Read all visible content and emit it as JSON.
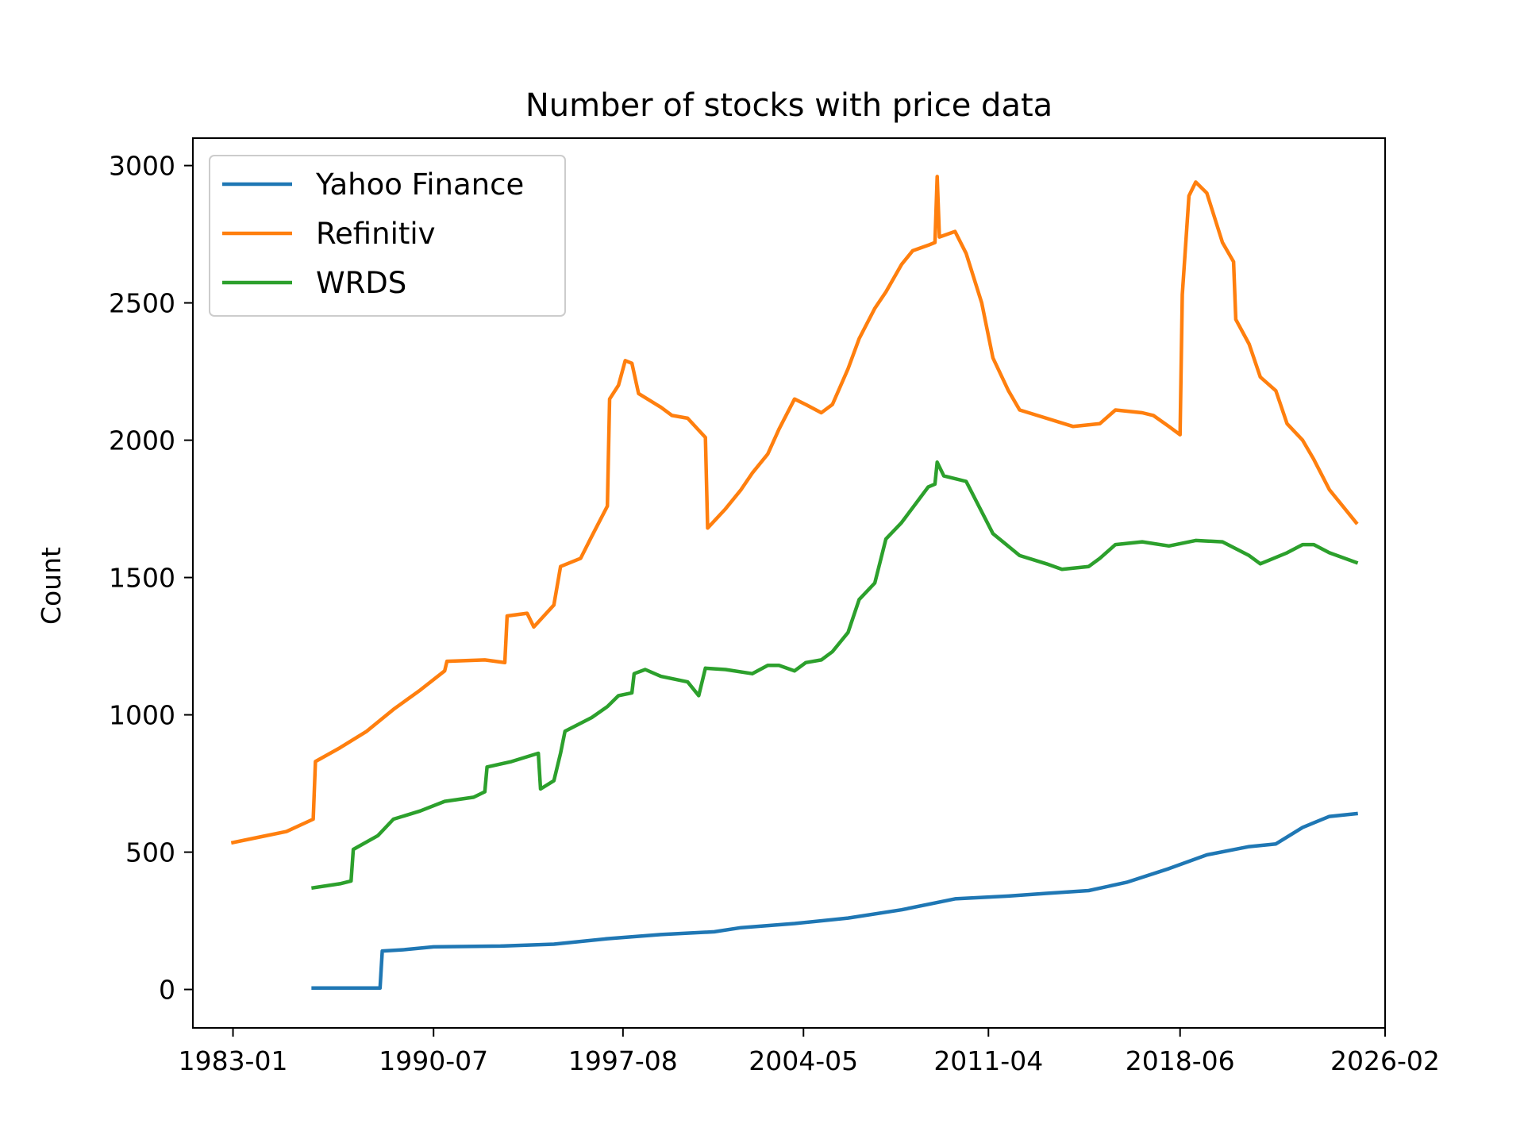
{
  "chart_data": {
    "type": "line",
    "title": "Number of stocks with price data",
    "xlabel": "",
    "ylabel": "Count",
    "x_ticks": [
      "1983-01",
      "1990-07",
      "1997-08",
      "2004-05",
      "2011-04",
      "2018-06",
      "2026-02"
    ],
    "y_ticks": [
      "0",
      "500",
      "1000",
      "1500",
      "2000",
      "2500",
      "3000"
    ],
    "xlim": [
      "1981-07",
      "2026-02"
    ],
    "ylim": [
      -140,
      3100
    ],
    "grid": false,
    "legend_position": "top-left",
    "series": [
      {
        "name": "Yahoo Finance",
        "color": "#1f77b4",
        "points": [
          [
            "1986-01",
            5
          ],
          [
            "1988-07",
            5
          ],
          [
            "1988-08",
            140
          ],
          [
            "1989-06",
            145
          ],
          [
            "1990-07",
            155
          ],
          [
            "1993-01",
            158
          ],
          [
            "1995-01",
            165
          ],
          [
            "1997-01",
            185
          ],
          [
            "1999-01",
            200
          ],
          [
            "2001-01",
            210
          ],
          [
            "2002-01",
            225
          ],
          [
            "2004-01",
            240
          ],
          [
            "2006-01",
            260
          ],
          [
            "2008-01",
            290
          ],
          [
            "2010-01",
            330
          ],
          [
            "2012-01",
            340
          ],
          [
            "2013-06",
            350
          ],
          [
            "2015-01",
            360
          ],
          [
            "2016-06",
            390
          ],
          [
            "2018-01",
            440
          ],
          [
            "2019-06",
            490
          ],
          [
            "2021-01",
            520
          ],
          [
            "2022-01",
            530
          ],
          [
            "2023-01",
            590
          ],
          [
            "2024-01",
            630
          ],
          [
            "2025-01",
            640
          ]
        ]
      },
      {
        "name": "Refinitiv",
        "color": "#ff7f0e",
        "points": [
          [
            "1983-01",
            535
          ],
          [
            "1984-01",
            555
          ],
          [
            "1985-01",
            575
          ],
          [
            "1986-01",
            620
          ],
          [
            "1986-02",
            830
          ],
          [
            "1987-01",
            880
          ],
          [
            "1988-01",
            940
          ],
          [
            "1989-01",
            1020
          ],
          [
            "1990-01",
            1090
          ],
          [
            "1990-12",
            1160
          ],
          [
            "1991-01",
            1195
          ],
          [
            "1992-06",
            1200
          ],
          [
            "1993-03",
            1190
          ],
          [
            "1993-04",
            1360
          ],
          [
            "1994-01",
            1370
          ],
          [
            "1994-04",
            1320
          ],
          [
            "1995-01",
            1400
          ],
          [
            "1995-04",
            1540
          ],
          [
            "1996-01",
            1570
          ],
          [
            "1996-06",
            1650
          ],
          [
            "1997-01",
            1760
          ],
          [
            "1997-02",
            2150
          ],
          [
            "1997-06",
            2200
          ],
          [
            "1997-09",
            2290
          ],
          [
            "1997-12",
            2280
          ],
          [
            "1998-03",
            2170
          ],
          [
            "1999-01",
            2120
          ],
          [
            "1999-06",
            2090
          ],
          [
            "2000-01",
            2080
          ],
          [
            "2000-09",
            2010
          ],
          [
            "2000-10",
            1680
          ],
          [
            "2001-06",
            1750
          ],
          [
            "2002-01",
            1820
          ],
          [
            "2002-06",
            1880
          ],
          [
            "2003-01",
            1950
          ],
          [
            "2003-06",
            2040
          ],
          [
            "2004-01",
            2150
          ],
          [
            "2004-06",
            2130
          ],
          [
            "2005-01",
            2100
          ],
          [
            "2005-06",
            2130
          ],
          [
            "2006-01",
            2260
          ],
          [
            "2006-06",
            2370
          ],
          [
            "2007-01",
            2480
          ],
          [
            "2007-06",
            2540
          ],
          [
            "2008-01",
            2640
          ],
          [
            "2008-06",
            2690
          ],
          [
            "2009-01",
            2710
          ],
          [
            "2009-04",
            2720
          ],
          [
            "2009-05",
            2960
          ],
          [
            "2009-06",
            2740
          ],
          [
            "2010-01",
            2760
          ],
          [
            "2010-06",
            2680
          ],
          [
            "2011-01",
            2500
          ],
          [
            "2011-06",
            2300
          ],
          [
            "2012-01",
            2180
          ],
          [
            "2012-06",
            2110
          ],
          [
            "2013-06",
            2080
          ],
          [
            "2014-06",
            2050
          ],
          [
            "2015-06",
            2060
          ],
          [
            "2016-01",
            2110
          ],
          [
            "2017-01",
            2100
          ],
          [
            "2017-06",
            2090
          ],
          [
            "2018-01",
            2050
          ],
          [
            "2018-06",
            2020
          ],
          [
            "2018-07",
            2530
          ],
          [
            "2018-10",
            2890
          ],
          [
            "2019-01",
            2940
          ],
          [
            "2019-06",
            2900
          ],
          [
            "2020-01",
            2720
          ],
          [
            "2020-06",
            2650
          ],
          [
            "2020-07",
            2440
          ],
          [
            "2021-01",
            2350
          ],
          [
            "2021-06",
            2230
          ],
          [
            "2022-01",
            2180
          ],
          [
            "2022-06",
            2060
          ],
          [
            "2023-01",
            2000
          ],
          [
            "2023-06",
            1930
          ],
          [
            "2024-01",
            1820
          ],
          [
            "2025-01",
            1700
          ]
        ]
      },
      {
        "name": "WRDS",
        "color": "#2ca02c",
        "points": [
          [
            "1986-01",
            370
          ],
          [
            "1987-01",
            385
          ],
          [
            "1987-06",
            395
          ],
          [
            "1987-07",
            510
          ],
          [
            "1988-06",
            560
          ],
          [
            "1989-01",
            620
          ],
          [
            "1990-01",
            650
          ],
          [
            "1990-12",
            685
          ],
          [
            "1992-01",
            700
          ],
          [
            "1992-06",
            720
          ],
          [
            "1992-07",
            810
          ],
          [
            "1993-06",
            830
          ],
          [
            "1994-06",
            860
          ],
          [
            "1994-07",
            730
          ],
          [
            "1995-01",
            760
          ],
          [
            "1995-04",
            860
          ],
          [
            "1995-06",
            940
          ],
          [
            "1996-06",
            990
          ],
          [
            "1997-01",
            1030
          ],
          [
            "1997-06",
            1070
          ],
          [
            "1997-12",
            1080
          ],
          [
            "1998-01",
            1150
          ],
          [
            "1998-06",
            1165
          ],
          [
            "1999-01",
            1140
          ],
          [
            "2000-01",
            1120
          ],
          [
            "2000-06",
            1070
          ],
          [
            "2000-09",
            1170
          ],
          [
            "2001-06",
            1165
          ],
          [
            "2002-06",
            1150
          ],
          [
            "2003-01",
            1180
          ],
          [
            "2003-06",
            1180
          ],
          [
            "2004-01",
            1160
          ],
          [
            "2004-06",
            1190
          ],
          [
            "2005-01",
            1200
          ],
          [
            "2005-06",
            1230
          ],
          [
            "2006-01",
            1300
          ],
          [
            "2006-06",
            1420
          ],
          [
            "2007-01",
            1480
          ],
          [
            "2007-06",
            1640
          ],
          [
            "2008-01",
            1700
          ],
          [
            "2009-01",
            1830
          ],
          [
            "2009-04",
            1840
          ],
          [
            "2009-05",
            1920
          ],
          [
            "2009-08",
            1870
          ],
          [
            "2010-06",
            1850
          ],
          [
            "2011-06",
            1660
          ],
          [
            "2012-06",
            1580
          ],
          [
            "2013-06",
            1550
          ],
          [
            "2014-01",
            1530
          ],
          [
            "2015-01",
            1540
          ],
          [
            "2015-06",
            1570
          ],
          [
            "2016-01",
            1620
          ],
          [
            "2017-01",
            1630
          ],
          [
            "2018-01",
            1615
          ],
          [
            "2019-01",
            1635
          ],
          [
            "2020-01",
            1630
          ],
          [
            "2021-01",
            1580
          ],
          [
            "2021-06",
            1550
          ],
          [
            "2022-06",
            1590
          ],
          [
            "2023-01",
            1620
          ],
          [
            "2023-06",
            1620
          ],
          [
            "2024-01",
            1590
          ],
          [
            "2025-01",
            1555
          ]
        ]
      }
    ]
  }
}
